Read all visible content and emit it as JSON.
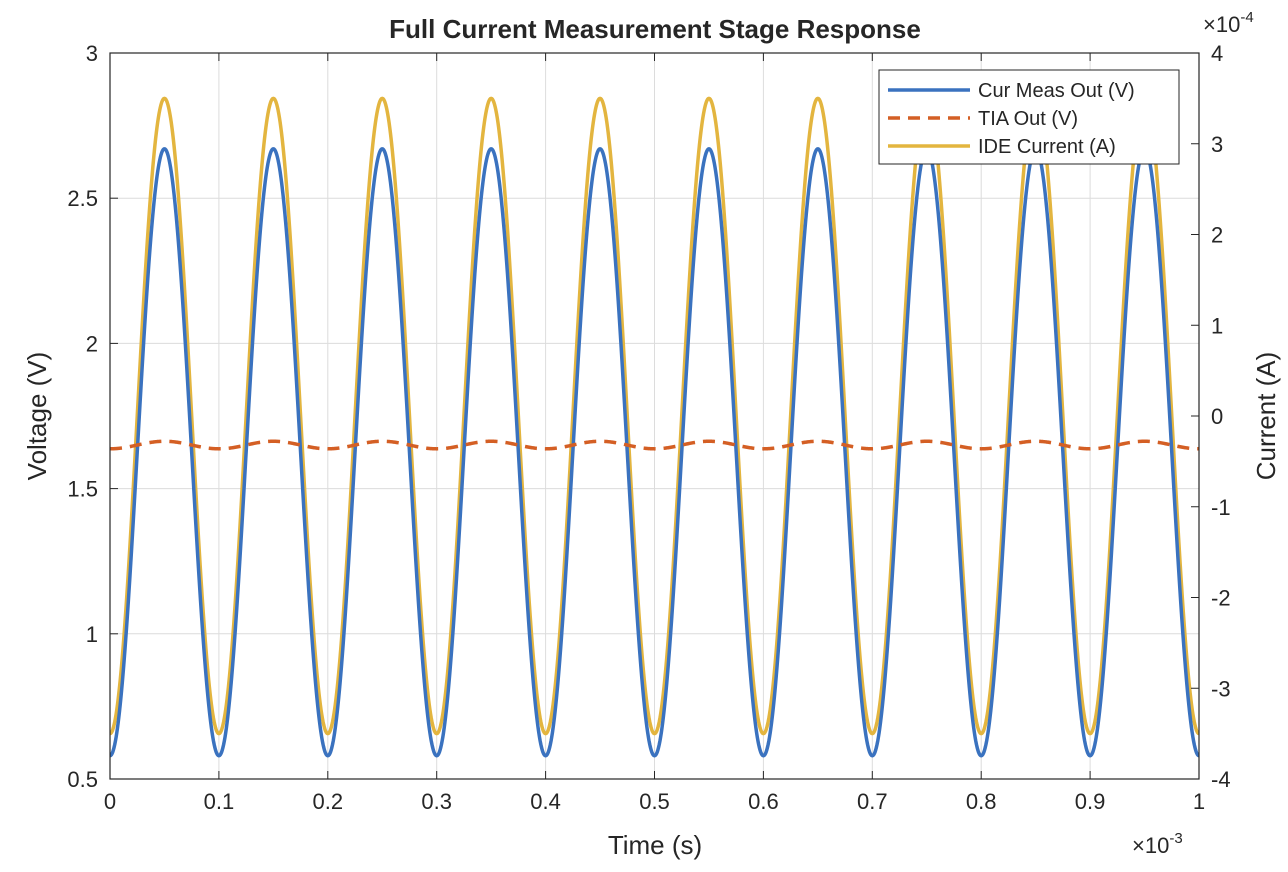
{
  "chart_data": {
    "type": "line",
    "title": "Full Current Measurement Stage Response",
    "xlabel": "Time (s)",
    "ylabel_left": "Voltage (V)",
    "ylabel_right": "Current (A)",
    "x_multiplier": "×10",
    "x_multiplier_exp": "-3",
    "y_right_multiplier": "×10",
    "y_right_multiplier_exp": "-4",
    "xlim": [
      0,
      0.001
    ],
    "ylim_left": [
      0.5,
      3
    ],
    "ylim_right": [
      -0.0004,
      0.0004
    ],
    "x_ticks": [
      0,
      0.1,
      0.2,
      0.3,
      0.4,
      0.5,
      0.6,
      0.7,
      0.8,
      0.9,
      1
    ],
    "x_tick_labels": [
      "0",
      "0.1",
      "0.2",
      "0.3",
      "0.4",
      "0.5",
      "0.6",
      "0.7",
      "0.8",
      "0.9",
      "1"
    ],
    "y_left_ticks": [
      0.5,
      1,
      1.5,
      2,
      2.5,
      3
    ],
    "y_left_tick_labels": [
      "0.5",
      "1",
      "1.5",
      "2",
      "2.5",
      "3"
    ],
    "y_right_ticks": [
      -4,
      -3,
      -2,
      -1,
      0,
      1,
      2,
      3,
      4
    ],
    "y_right_tick_labels": [
      "-4",
      "-3",
      "-2",
      "-1",
      "0",
      "1",
      "2",
      "3",
      "4"
    ],
    "grid": true,
    "legend_position": "top-right",
    "series": [
      {
        "name": "Cur Meas Out (V)",
        "axis": "left",
        "color": "#3a72bf",
        "style": "solid",
        "frequency_hz": 10000,
        "offset": 1.625,
        "amplitude": 1.045,
        "phase_deg": 270,
        "min": 0.58,
        "max": 2.67
      },
      {
        "name": "TIA Out (V)",
        "axis": "left",
        "color": "#d45f24",
        "style": "dashed",
        "frequency_hz": 10000,
        "offset": 1.65,
        "amplitude": 0.013,
        "phase_deg": 270,
        "min": 1.637,
        "max": 1.663
      },
      {
        "name": "IDE Current (A)",
        "axis": "right",
        "color": "#e3b53f",
        "style": "solid",
        "frequency_hz": 10000,
        "offset": 0,
        "amplitude": 0.00035,
        "phase_deg": 270,
        "min": -0.00035,
        "max": 0.00035
      }
    ]
  }
}
